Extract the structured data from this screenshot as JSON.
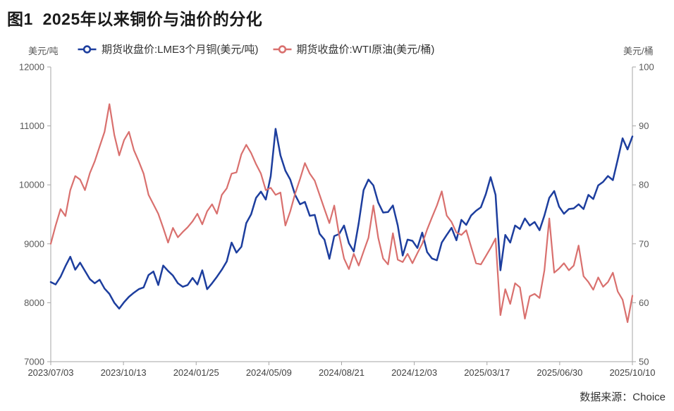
{
  "title": "图1  2025年以来铜价与油价的分化",
  "source": "数据来源：Choice",
  "chart_data": {
    "type": "line",
    "title": "2025年以来铜价与油价的分化",
    "x_ticks": [
      "2023/07/03",
      "2023/10/13",
      "2024/01/25",
      "2024/05/09",
      "2024/08/21",
      "2024/12/03",
      "2025/03/17",
      "2025/06/30",
      "2025/10/10"
    ],
    "left_axis": {
      "unit": "美元/吨",
      "min": 7000,
      "max": 12000,
      "ticks": [
        12000,
        11000,
        10000,
        9000,
        8000,
        7000
      ]
    },
    "right_axis": {
      "unit": "美元/桶",
      "min": 50,
      "max": 100,
      "ticks": [
        100,
        90,
        80,
        70,
        60,
        50
      ]
    },
    "grid": false,
    "legend_position": "top",
    "series": [
      {
        "key": "lme-copper-3m",
        "name": "期货收盘价:LME3个月铜(美元/吨)",
        "axis": "left",
        "color": "#1d3e9e",
        "line_width": 2.5,
        "values": [
          8350,
          8310,
          8440,
          8620,
          8780,
          8560,
          8680,
          8540,
          8400,
          8330,
          8390,
          8240,
          8150,
          8000,
          7900,
          8010,
          8100,
          8170,
          8230,
          8260,
          8470,
          8530,
          8300,
          8630,
          8540,
          8460,
          8330,
          8270,
          8300,
          8420,
          8310,
          8550,
          8230,
          8330,
          8440,
          8560,
          8700,
          9020,
          8850,
          8950,
          9350,
          9500,
          9780,
          9885,
          9750,
          10150,
          10950,
          10500,
          10240,
          10090,
          9830,
          9670,
          9710,
          9475,
          9490,
          9170,
          9070,
          8745,
          9130,
          9165,
          9310,
          9010,
          8870,
          9350,
          9910,
          10090,
          9990,
          9700,
          9530,
          9540,
          9650,
          9310,
          8800,
          9070,
          9050,
          8930,
          9190,
          8860,
          8750,
          8720,
          9020,
          9150,
          9270,
          9060,
          9405,
          9320,
          9480,
          9560,
          9620,
          9840,
          10130,
          9830,
          8550,
          9150,
          9020,
          9310,
          9250,
          9430,
          9310,
          9370,
          9230,
          9480,
          9780,
          9895,
          9630,
          9510,
          9590,
          9600,
          9670,
          9590,
          9830,
          9760,
          9990,
          10050,
          10150,
          10080,
          10430,
          10790,
          10600,
          10820
        ]
      },
      {
        "key": "wti-crude",
        "name": "期货收盘价:WTI原油(美元/桶)",
        "axis": "right",
        "color": "#d9706e",
        "line_width": 2.2,
        "values": [
          70.0,
          73.1,
          75.9,
          74.7,
          79.1,
          81.5,
          80.9,
          79.1,
          82.0,
          84.0,
          86.5,
          89.0,
          93.7,
          88.5,
          85.0,
          87.6,
          89.0,
          85.9,
          84.0,
          81.9,
          78.3,
          76.7,
          75.1,
          72.7,
          70.2,
          72.7,
          71.1,
          72.0,
          72.8,
          73.8,
          75.1,
          73.3,
          75.5,
          76.7,
          75.1,
          78.3,
          79.4,
          81.9,
          82.1,
          85.2,
          86.8,
          85.4,
          83.5,
          81.9,
          79.1,
          79.5,
          78.3,
          78.7,
          73.1,
          75.5,
          78.5,
          81.0,
          83.7,
          81.9,
          80.7,
          78.3,
          75.9,
          73.5,
          76.5,
          71.5,
          67.5,
          65.7,
          68.3,
          66.3,
          68.7,
          71.0,
          76.5,
          71.0,
          67.5,
          66.5,
          71.8,
          67.3,
          66.9,
          68.3,
          66.7,
          68.4,
          70.0,
          72.4,
          74.5,
          76.5,
          78.9,
          74.8,
          73.7,
          71.9,
          71.5,
          72.3,
          69.5,
          66.7,
          66.5,
          67.9,
          69.3,
          70.9,
          57.9,
          62.3,
          59.8,
          63.3,
          62.6,
          57.3,
          61.1,
          61.5,
          60.8,
          65.5,
          74.3,
          65.1,
          65.8,
          66.7,
          65.5,
          66.3,
          69.7,
          64.5,
          63.5,
          62.2,
          64.3,
          62.7,
          63.5,
          65.1,
          61.9,
          60.5,
          56.7,
          61.2
        ]
      }
    ]
  }
}
